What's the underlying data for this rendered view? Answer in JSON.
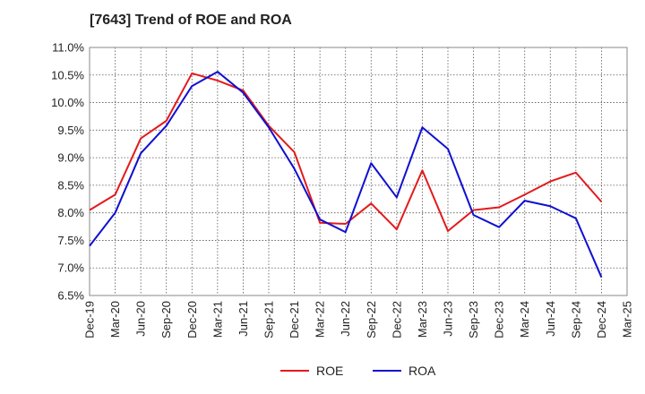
{
  "chart_data": {
    "type": "line",
    "title": "[7643]  Trend of ROE and ROA",
    "xlabel": "",
    "ylabel": "",
    "categories": [
      "Dec-19",
      "Mar-20",
      "Jun-20",
      "Sep-20",
      "Dec-20",
      "Mar-21",
      "Jun-21",
      "Sep-21",
      "Dec-21",
      "Mar-22",
      "Jun-22",
      "Sep-22",
      "Dec-22",
      "Mar-23",
      "Jun-23",
      "Sep-23",
      "Dec-23",
      "Mar-24",
      "Jun-24",
      "Sep-24",
      "Dec-24",
      "Mar-25"
    ],
    "ylim": [
      6.5,
      11.0
    ],
    "yticks": [
      6.5,
      7.0,
      7.5,
      8.0,
      8.5,
      9.0,
      9.5,
      10.0,
      10.5,
      11.0
    ],
    "ytick_labels": [
      "6.5%",
      "7.0%",
      "7.5%",
      "8.0%",
      "8.5%",
      "9.0%",
      "9.5%",
      "10.0%",
      "10.5%",
      "11.0%"
    ],
    "grid": true,
    "legend_position": "bottom",
    "series": [
      {
        "name": "ROE",
        "color": "#e31a1c",
        "values": [
          8.05,
          8.33,
          9.35,
          9.67,
          10.53,
          10.4,
          10.22,
          9.58,
          9.1,
          7.82,
          7.8,
          8.17,
          7.7,
          8.77,
          7.67,
          8.05,
          8.1,
          8.33,
          8.57,
          8.73,
          8.2,
          null
        ]
      },
      {
        "name": "ROA",
        "color": "#1010d0",
        "values": [
          7.4,
          8.0,
          9.08,
          9.58,
          10.3,
          10.56,
          10.18,
          9.55,
          8.8,
          7.88,
          7.65,
          8.9,
          8.28,
          9.55,
          9.16,
          7.96,
          7.74,
          8.22,
          8.12,
          7.9,
          6.83,
          null
        ]
      }
    ]
  }
}
